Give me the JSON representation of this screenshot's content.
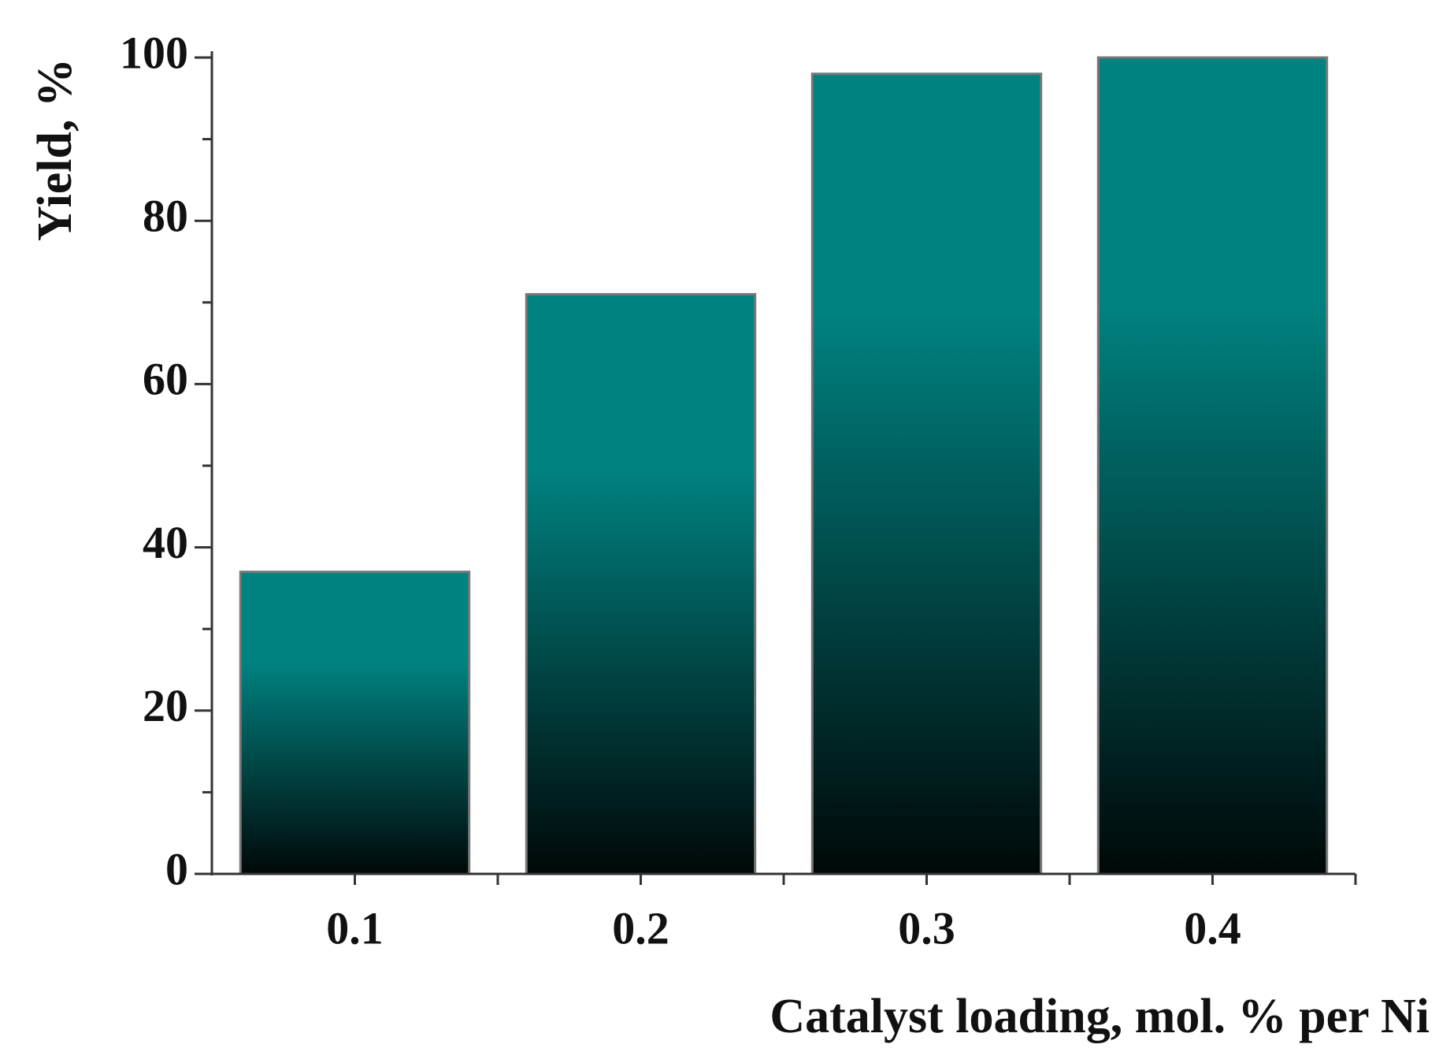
{
  "chart_data": {
    "type": "bar",
    "xlabel": "Catalyst  loading, mol.  % per Ni",
    "ylabel": "Yield, %",
    "categories": [
      "0.1",
      "0.2",
      "0.3",
      "0.4"
    ],
    "values": [
      37,
      71,
      98,
      100
    ],
    "color": "#008280",
    "gradient_end": "#000808",
    "ylim": [
      0,
      100
    ],
    "yticks": [
      0,
      20,
      40,
      60,
      80,
      100
    ],
    "yminorticks": [
      10,
      30,
      50,
      70,
      90
    ],
    "grid": false
  }
}
